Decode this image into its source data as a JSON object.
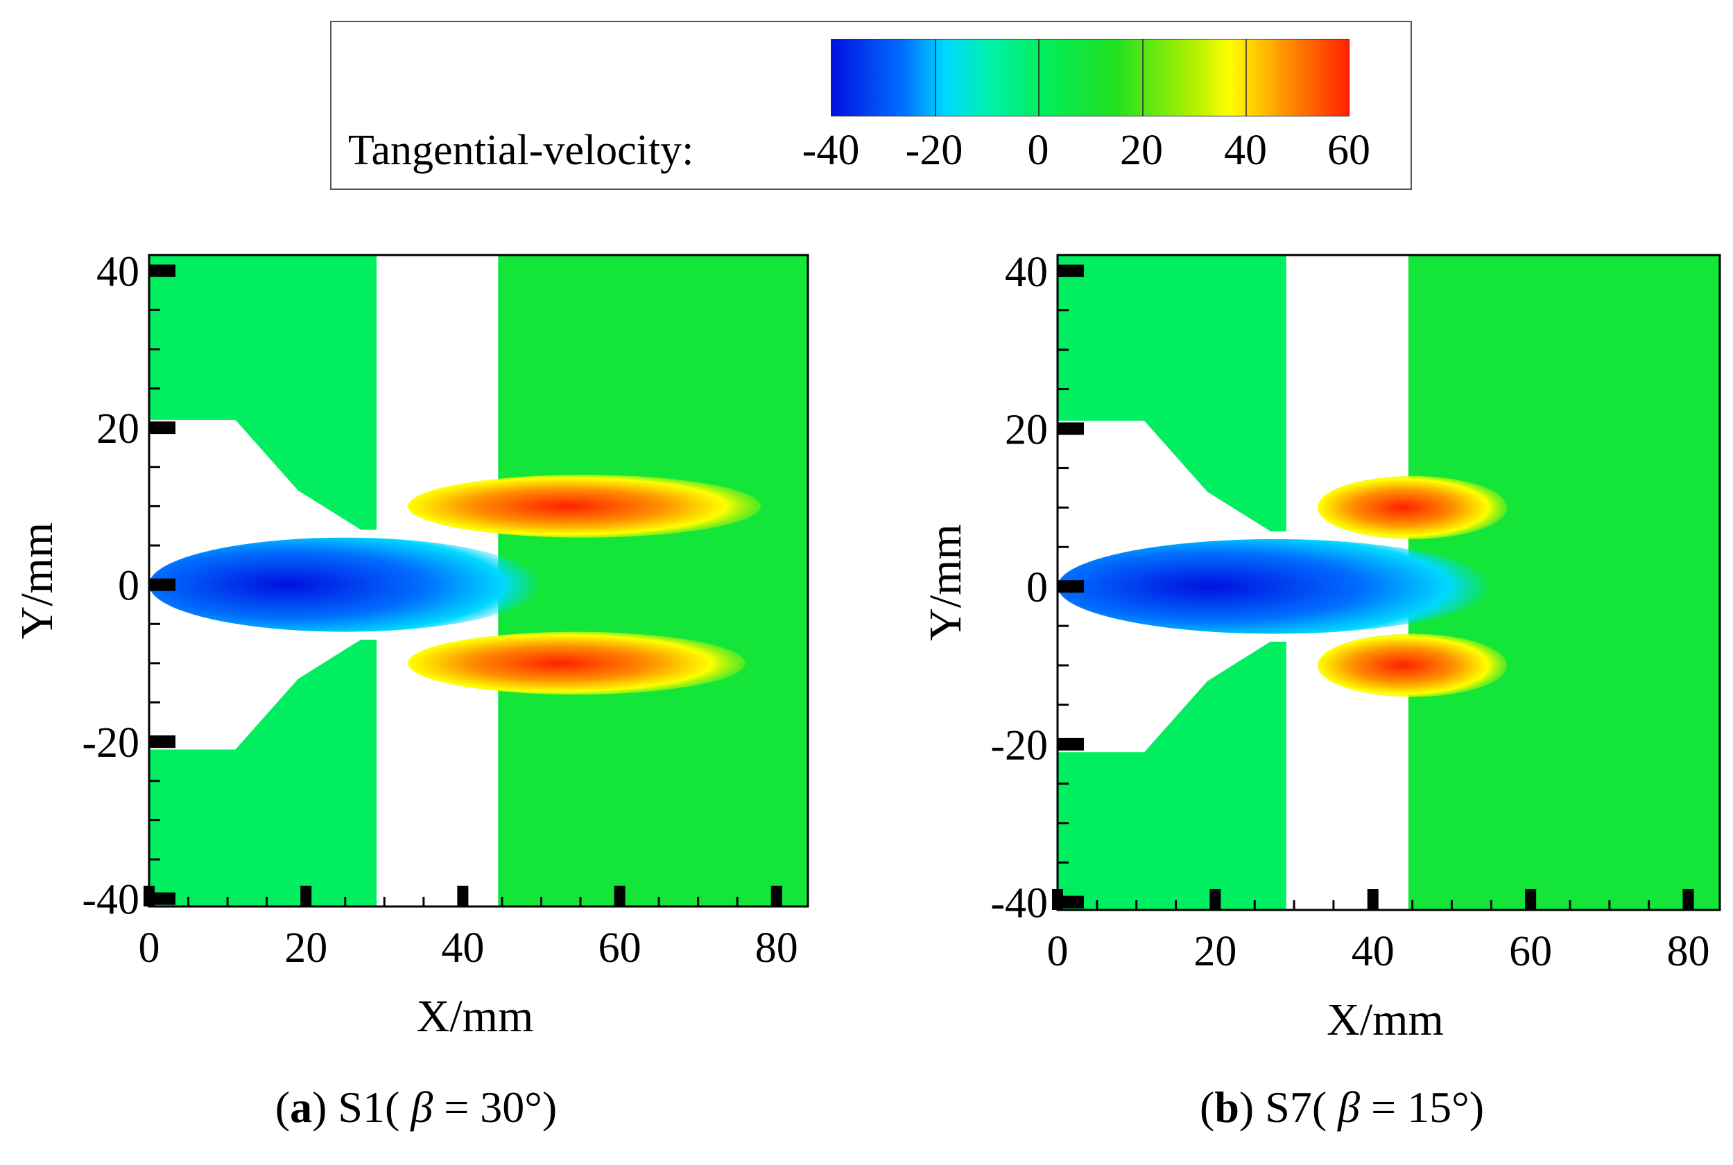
{
  "legend": {
    "label": "Tangential-velocity:",
    "ticks": [
      "-40",
      "-20",
      "0",
      "20",
      "40",
      "60"
    ],
    "range": [
      -40,
      60
    ],
    "colormap": [
      "#0010e0",
      "#0070ff",
      "#00d8ff",
      "#00ee60",
      "#20e020",
      "#b0f000",
      "#ffff00",
      "#ff9000",
      "#ff2000"
    ]
  },
  "chart_data": [
    {
      "type": "heatmap",
      "id": "a",
      "caption_tag": "a",
      "caption_text": "S1(",
      "caption_symbol": "β",
      "caption_value": "= 30°)",
      "xlabel": "X/mm",
      "ylabel": "Y/mm",
      "xlim": [
        0,
        84
      ],
      "ylim": [
        -41,
        42
      ],
      "xticks": [
        "0",
        "20",
        "40",
        "60",
        "80"
      ],
      "yticks": [
        "40",
        "20",
        "0",
        "-20",
        "-40"
      ],
      "variable": "Tangential-velocity",
      "background_value": 0,
      "gap_region_mm": [
        29,
        44.5
      ],
      "swirler_beta_deg": 30,
      "features": [
        {
          "name": "central-reverse-jet",
          "x_range": [
            0,
            50
          ],
          "y_range": [
            -6,
            6
          ],
          "value": -35
        },
        {
          "name": "upper-swirl-jet",
          "x_range": [
            33,
            78
          ],
          "y_range": [
            6,
            14
          ],
          "value": 50
        },
        {
          "name": "lower-swirl-jet",
          "x_range": [
            33,
            76
          ],
          "y_range": [
            -14,
            -6
          ],
          "value": 50
        }
      ]
    },
    {
      "type": "heatmap",
      "id": "b",
      "caption_tag": "b",
      "caption_text": "S7(",
      "caption_symbol": "β",
      "caption_value": "= 15°)",
      "xlabel": "X/mm",
      "ylabel": "Y/mm",
      "xlim": [
        0,
        84
      ],
      "ylim": [
        -41,
        42
      ],
      "xticks": [
        "0",
        "20",
        "40",
        "60",
        "80"
      ],
      "yticks": [
        "40",
        "20",
        "0",
        "-20",
        "-40"
      ],
      "variable": "Tangential-velocity",
      "background_value": 0,
      "gap_region_mm": [
        29,
        44.5
      ],
      "swirler_beta_deg": 15,
      "features": [
        {
          "name": "central-reverse-jet",
          "x_range": [
            0,
            55
          ],
          "y_range": [
            -6,
            6
          ],
          "value": -35
        },
        {
          "name": "upper-swirl-jet",
          "x_range": [
            33,
            57
          ],
          "y_range": [
            6,
            14
          ],
          "value": 55
        },
        {
          "name": "lower-swirl-jet",
          "x_range": [
            33,
            57
          ],
          "y_range": [
            -14,
            -6
          ],
          "value": 55
        }
      ]
    }
  ]
}
